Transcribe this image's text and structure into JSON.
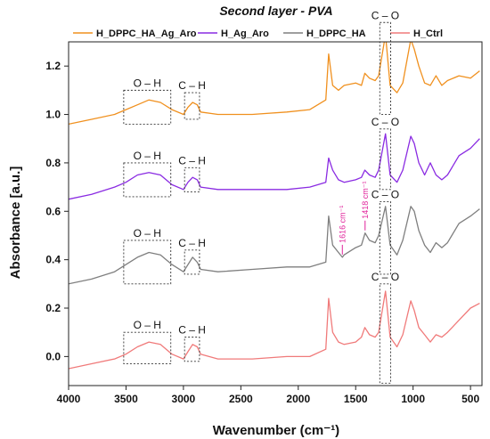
{
  "chart_data": {
    "type": "line",
    "title": "Second layer - PVA",
    "xlabel": "Wavenumber (cm⁻¹)",
    "ylabel": "Absorbance [a.u.]",
    "xlim": [
      4000,
      400
    ],
    "xreversed": true,
    "ylim": [
      -0.12,
      1.3
    ],
    "xticks": [
      4000,
      3500,
      3000,
      2500,
      2000,
      1500,
      1000,
      500
    ],
    "yticks": [
      0.0,
      0.2,
      0.4,
      0.6,
      0.8,
      1.0,
      1.2
    ],
    "ytick_labels": [
      "0.0",
      "0.2",
      "0.4",
      "0.6",
      "0.8",
      "1.0",
      "1.2"
    ],
    "legend_position": "top",
    "series": [
      {
        "name": "H_DPPC_HA_Ag_Aro",
        "color": "#f0901e",
        "points": [
          [
            4000,
            0.96
          ],
          [
            3800,
            0.98
          ],
          [
            3600,
            1.0
          ],
          [
            3500,
            1.02
          ],
          [
            3400,
            1.04
          ],
          [
            3300,
            1.06
          ],
          [
            3200,
            1.05
          ],
          [
            3100,
            1.02
          ],
          [
            3000,
            1.0
          ],
          [
            2960,
            1.03
          ],
          [
            2920,
            1.05
          ],
          [
            2880,
            1.04
          ],
          [
            2850,
            1.01
          ],
          [
            2700,
            1.0
          ],
          [
            2400,
            1.0
          ],
          [
            2100,
            1.01
          ],
          [
            1900,
            1.02
          ],
          [
            1760,
            1.06
          ],
          [
            1735,
            1.25
          ],
          [
            1700,
            1.12
          ],
          [
            1650,
            1.1
          ],
          [
            1600,
            1.12
          ],
          [
            1500,
            1.13
          ],
          [
            1450,
            1.12
          ],
          [
            1420,
            1.17
          ],
          [
            1380,
            1.15
          ],
          [
            1330,
            1.14
          ],
          [
            1300,
            1.16
          ],
          [
            1240,
            1.33
          ],
          [
            1200,
            1.12
          ],
          [
            1140,
            1.09
          ],
          [
            1090,
            1.13
          ],
          [
            1020,
            1.31
          ],
          [
            990,
            1.27
          ],
          [
            950,
            1.2
          ],
          [
            900,
            1.13
          ],
          [
            850,
            1.12
          ],
          [
            800,
            1.16
          ],
          [
            750,
            1.12
          ],
          [
            700,
            1.14
          ],
          [
            600,
            1.16
          ],
          [
            500,
            1.15
          ],
          [
            420,
            1.18
          ]
        ]
      },
      {
        "name": "H_Ag_Aro",
        "color": "#8a2be2",
        "points": [
          [
            4000,
            0.65
          ],
          [
            3800,
            0.67
          ],
          [
            3600,
            0.7
          ],
          [
            3500,
            0.72
          ],
          [
            3400,
            0.75
          ],
          [
            3300,
            0.76
          ],
          [
            3200,
            0.75
          ],
          [
            3100,
            0.71
          ],
          [
            3000,
            0.69
          ],
          [
            2960,
            0.72
          ],
          [
            2920,
            0.74
          ],
          [
            2880,
            0.73
          ],
          [
            2850,
            0.7
          ],
          [
            2700,
            0.69
          ],
          [
            2400,
            0.69
          ],
          [
            2100,
            0.69
          ],
          [
            1900,
            0.7
          ],
          [
            1760,
            0.72
          ],
          [
            1735,
            0.82
          ],
          [
            1700,
            0.77
          ],
          [
            1650,
            0.73
          ],
          [
            1600,
            0.72
          ],
          [
            1500,
            0.73
          ],
          [
            1450,
            0.74
          ],
          [
            1420,
            0.77
          ],
          [
            1380,
            0.75
          ],
          [
            1330,
            0.74
          ],
          [
            1300,
            0.77
          ],
          [
            1240,
            0.92
          ],
          [
            1200,
            0.75
          ],
          [
            1140,
            0.72
          ],
          [
            1090,
            0.77
          ],
          [
            1020,
            0.91
          ],
          [
            990,
            0.88
          ],
          [
            950,
            0.8
          ],
          [
            900,
            0.75
          ],
          [
            850,
            0.8
          ],
          [
            800,
            0.75
          ],
          [
            750,
            0.73
          ],
          [
            700,
            0.75
          ],
          [
            600,
            0.83
          ],
          [
            500,
            0.86
          ],
          [
            420,
            0.9
          ]
        ]
      },
      {
        "name": "H_DPPC_HA",
        "color": "#7f7f7f",
        "points": [
          [
            4000,
            0.3
          ],
          [
            3800,
            0.32
          ],
          [
            3600,
            0.35
          ],
          [
            3500,
            0.38
          ],
          [
            3400,
            0.41
          ],
          [
            3300,
            0.43
          ],
          [
            3200,
            0.42
          ],
          [
            3100,
            0.38
          ],
          [
            3000,
            0.35
          ],
          [
            2960,
            0.38
          ],
          [
            2920,
            0.41
          ],
          [
            2880,
            0.39
          ],
          [
            2850,
            0.36
          ],
          [
            2700,
            0.35
          ],
          [
            2400,
            0.36
          ],
          [
            2100,
            0.37
          ],
          [
            1900,
            0.37
          ],
          [
            1760,
            0.39
          ],
          [
            1735,
            0.58
          ],
          [
            1700,
            0.46
          ],
          [
            1650,
            0.43
          ],
          [
            1616,
            0.41
          ],
          [
            1600,
            0.42
          ],
          [
            1500,
            0.45
          ],
          [
            1450,
            0.46
          ],
          [
            1418,
            0.51
          ],
          [
            1380,
            0.48
          ],
          [
            1330,
            0.47
          ],
          [
            1300,
            0.5
          ],
          [
            1240,
            0.62
          ],
          [
            1200,
            0.46
          ],
          [
            1140,
            0.42
          ],
          [
            1090,
            0.48
          ],
          [
            1020,
            0.62
          ],
          [
            990,
            0.6
          ],
          [
            950,
            0.52
          ],
          [
            900,
            0.46
          ],
          [
            850,
            0.43
          ],
          [
            800,
            0.47
          ],
          [
            750,
            0.45
          ],
          [
            700,
            0.47
          ],
          [
            600,
            0.55
          ],
          [
            500,
            0.58
          ],
          [
            420,
            0.61
          ]
        ]
      },
      {
        "name": "H_Ctrl",
        "color": "#f07a7a",
        "points": [
          [
            4000,
            -0.05
          ],
          [
            3800,
            -0.03
          ],
          [
            3600,
            -0.01
          ],
          [
            3500,
            0.01
          ],
          [
            3400,
            0.04
          ],
          [
            3300,
            0.06
          ],
          [
            3200,
            0.05
          ],
          [
            3100,
            0.01
          ],
          [
            3000,
            -0.01
          ],
          [
            2960,
            0.02
          ],
          [
            2920,
            0.05
          ],
          [
            2880,
            0.04
          ],
          [
            2850,
            0.01
          ],
          [
            2700,
            -0.01
          ],
          [
            2400,
            -0.01
          ],
          [
            2100,
            0.0
          ],
          [
            1900,
            0.0
          ],
          [
            1760,
            0.03
          ],
          [
            1735,
            0.24
          ],
          [
            1700,
            0.1
          ],
          [
            1650,
            0.06
          ],
          [
            1600,
            0.05
          ],
          [
            1500,
            0.06
          ],
          [
            1450,
            0.08
          ],
          [
            1420,
            0.12
          ],
          [
            1380,
            0.09
          ],
          [
            1330,
            0.08
          ],
          [
            1300,
            0.1
          ],
          [
            1240,
            0.27
          ],
          [
            1200,
            0.08
          ],
          [
            1140,
            0.04
          ],
          [
            1090,
            0.09
          ],
          [
            1020,
            0.23
          ],
          [
            990,
            0.19
          ],
          [
            950,
            0.12
          ],
          [
            900,
            0.09
          ],
          [
            850,
            0.06
          ],
          [
            800,
            0.09
          ],
          [
            750,
            0.08
          ],
          [
            700,
            0.1
          ],
          [
            600,
            0.15
          ],
          [
            500,
            0.2
          ],
          [
            420,
            0.22
          ]
        ]
      }
    ],
    "band_annotations": [
      {
        "label": "O – H",
        "x_range": [
          3520,
          3110
        ],
        "y_range": [
          0.96,
          1.1
        ]
      },
      {
        "label": "C – H",
        "x_range": [
          2990,
          2860
        ],
        "y_range": [
          0.98,
          1.09
        ]
      },
      {
        "label": "C – O",
        "x_range": [
          1290,
          1195
        ],
        "y_range": [
          1.0,
          1.38
        ]
      },
      {
        "label": "O – H",
        "x_range": [
          3520,
          3110
        ],
        "y_range": [
          0.66,
          0.8
        ]
      },
      {
        "label": "C – H",
        "x_range": [
          2990,
          2860
        ],
        "y_range": [
          0.68,
          0.78
        ]
      },
      {
        "label": "C – O",
        "x_range": [
          1290,
          1195
        ],
        "y_range": [
          0.69,
          0.94
        ]
      },
      {
        "label": "O – H",
        "x_range": [
          3520,
          3110
        ],
        "y_range": [
          0.3,
          0.48
        ]
      },
      {
        "label": "C – H",
        "x_range": [
          2990,
          2860
        ],
        "y_range": [
          0.34,
          0.44
        ]
      },
      {
        "label": "C – O",
        "x_range": [
          1290,
          1195
        ],
        "y_range": [
          0.34,
          0.64
        ]
      },
      {
        "label": "O – H",
        "x_range": [
          3520,
          3110
        ],
        "y_range": [
          -0.03,
          0.1
        ]
      },
      {
        "label": "C – H",
        "x_range": [
          2990,
          2860
        ],
        "y_range": [
          -0.02,
          0.08
        ]
      },
      {
        "label": "C – O",
        "x_range": [
          1290,
          1195
        ],
        "y_range": [
          -0.11,
          0.3
        ]
      }
    ],
    "peak_annotations": [
      {
        "label": "1616 cm⁻¹",
        "x": 1616,
        "y": 0.41
      },
      {
        "label": "1418 cm⁻¹",
        "x": 1418,
        "y": 0.51
      }
    ]
  }
}
